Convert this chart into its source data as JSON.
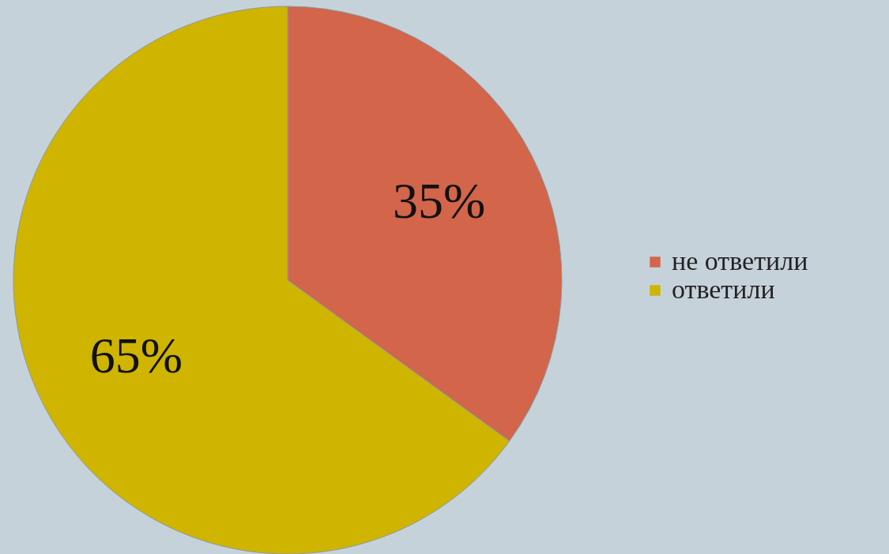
{
  "chart_data": {
    "type": "pie",
    "categories": [
      "не ответили",
      "ответили"
    ],
    "values": [
      35,
      65
    ],
    "colors": [
      "#d2654a",
      "#cfb400"
    ],
    "value_labels": [
      "35%",
      "65%"
    ],
    "legend": "right"
  }
}
